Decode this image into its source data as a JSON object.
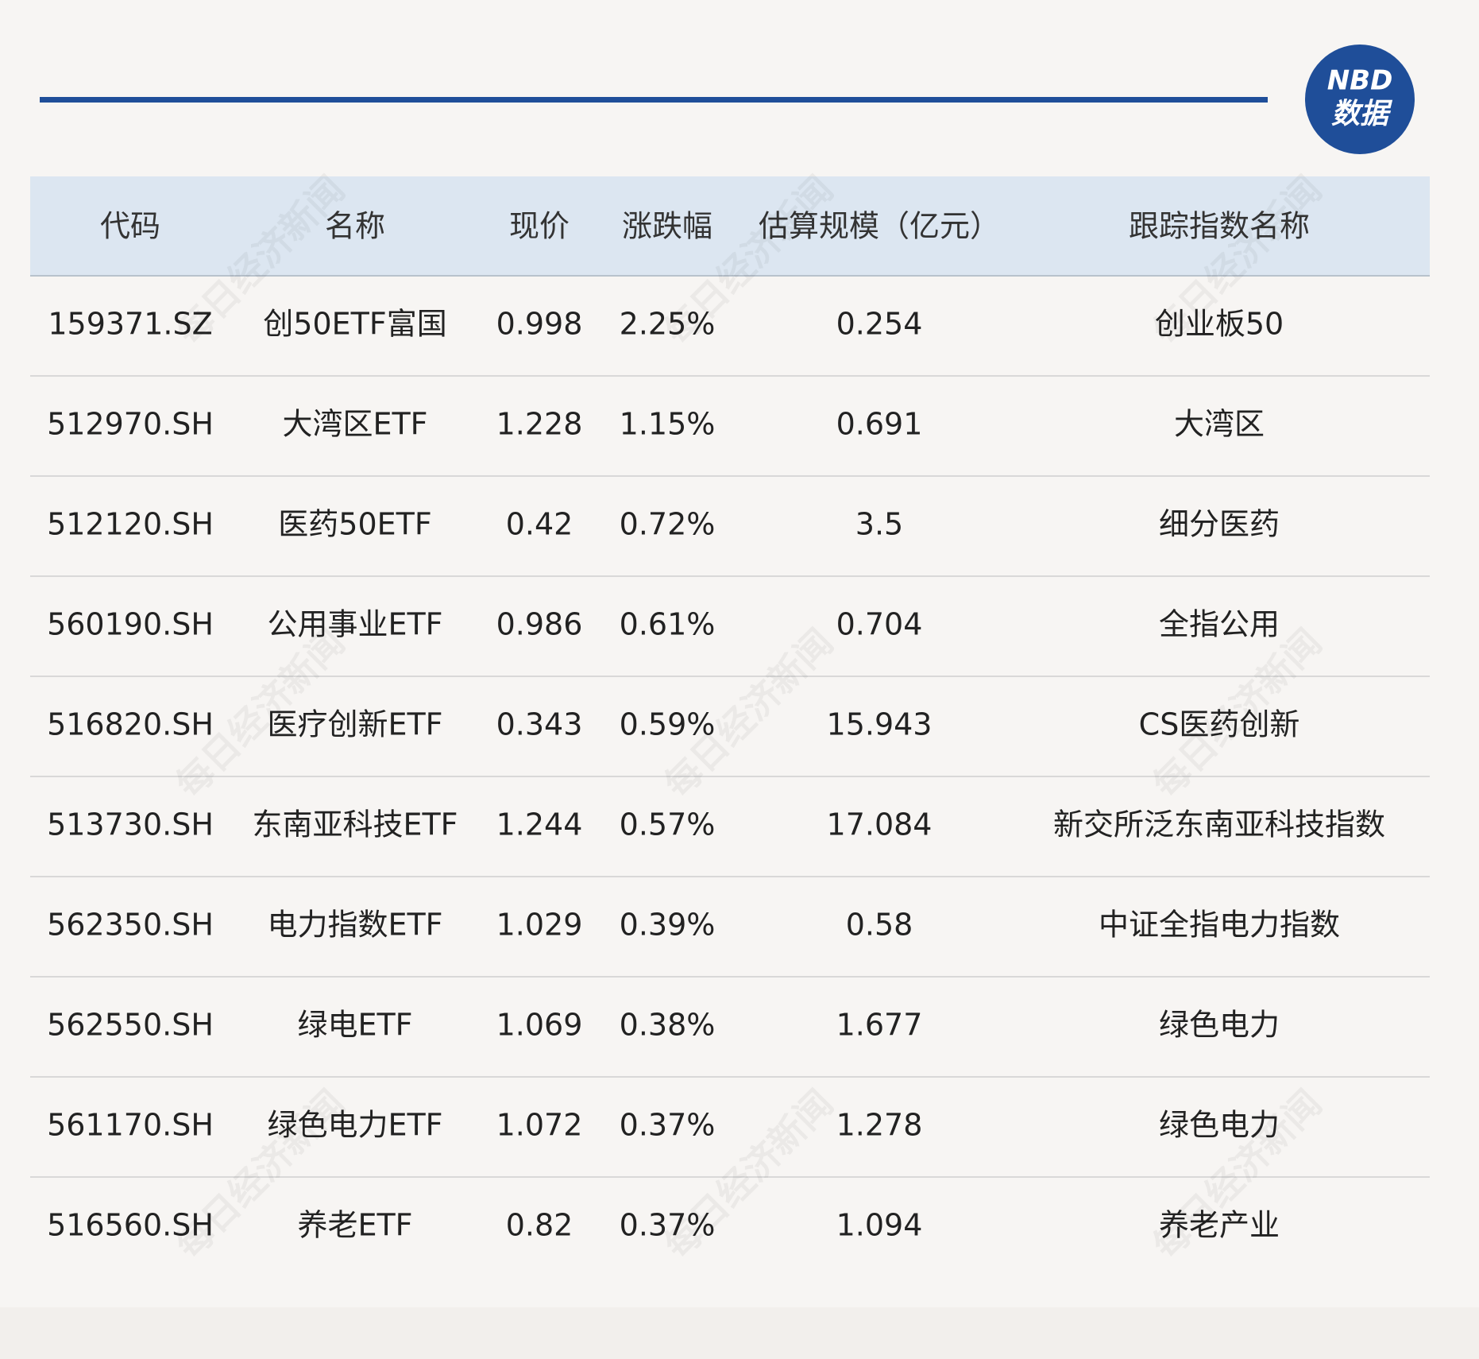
{
  "logo": {
    "brand": "NBD",
    "label": "数据"
  },
  "watermark": "每日经济新闻",
  "table": {
    "columns": [
      "代码",
      "名称",
      "现价",
      "涨跌幅",
      "估算规模（亿元）",
      "跟踪指数名称"
    ],
    "rows": [
      [
        "159371.SZ",
        "创50ETF富国",
        "0.998",
        "2.25%",
        "0.254",
        "创业板50"
      ],
      [
        "512970.SH",
        "大湾区ETF",
        "1.228",
        "1.15%",
        "0.691",
        "大湾区"
      ],
      [
        "512120.SH",
        "医药50ETF",
        "0.42",
        "0.72%",
        "3.5",
        "细分医药"
      ],
      [
        "560190.SH",
        "公用事业ETF",
        "0.986",
        "0.61%",
        "0.704",
        "全指公用"
      ],
      [
        "516820.SH",
        "医疗创新ETF",
        "0.343",
        "0.59%",
        "15.943",
        "CS医药创新"
      ],
      [
        "513730.SH",
        "东南亚科技ETF",
        "1.244",
        "0.57%",
        "17.084",
        "新交所泛东南亚科技指数"
      ],
      [
        "562350.SH",
        "电力指数ETF",
        "1.029",
        "0.39%",
        "0.58",
        "中证全指电力指数"
      ],
      [
        "562550.SH",
        "绿电ETF",
        "1.069",
        "0.38%",
        "1.677",
        "绿色电力"
      ],
      [
        "561170.SH",
        "绿色电力ETF",
        "1.072",
        "0.37%",
        "1.278",
        "绿色电力"
      ],
      [
        "516560.SH",
        "养老ETF",
        "0.82",
        "0.37%",
        "1.094",
        "养老产业"
      ]
    ]
  }
}
